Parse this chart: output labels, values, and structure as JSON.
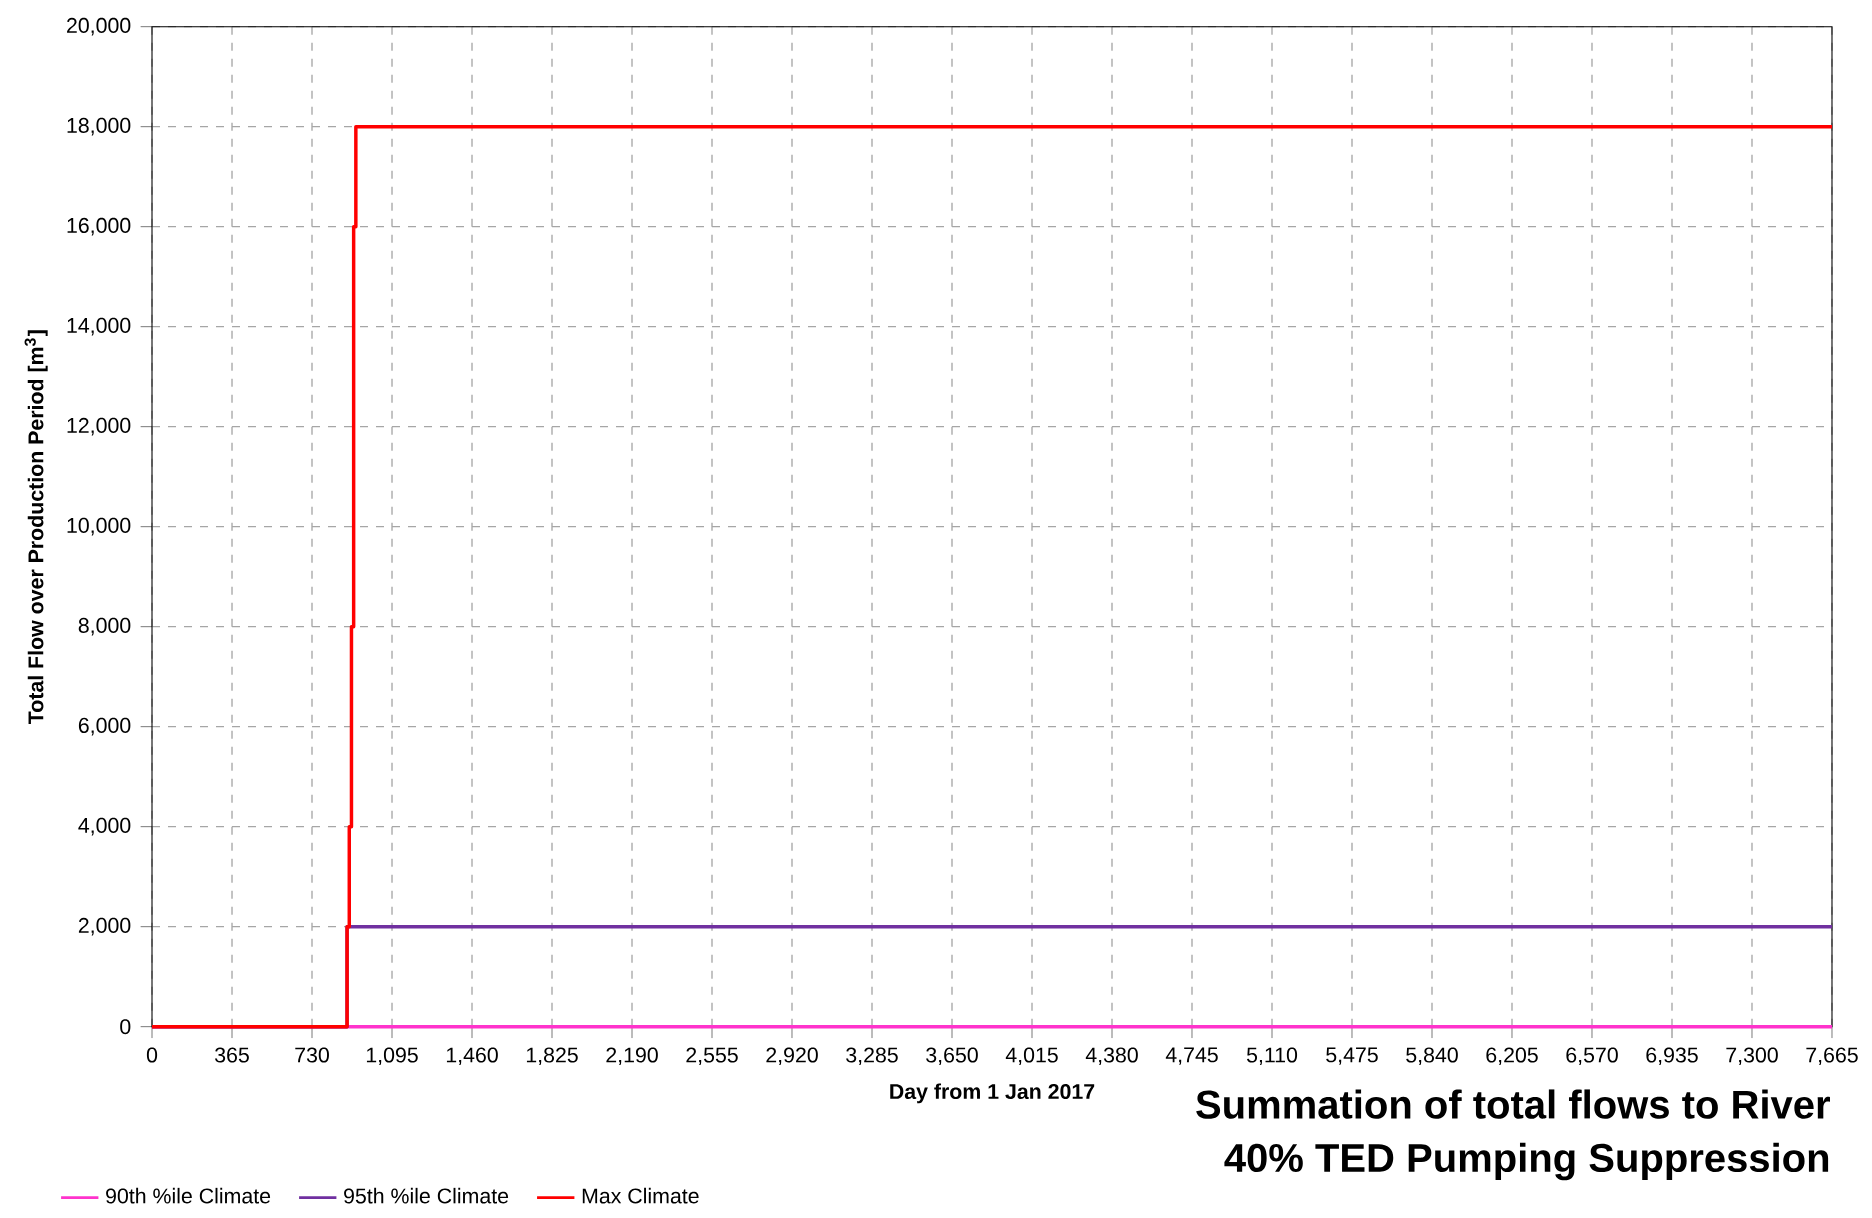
{
  "chart_data": {
    "type": "step",
    "xlabel": "Day from 1 Jan 2017",
    "ylabel": "Total Flow over Production Period [m$^{3}$]",
    "annotations": [
      "Summation of total flows to River",
      "40% TED Pumping Suppression"
    ],
    "series": [
      {
        "name": "90th %ile Climate",
        "color": "#ff33cc",
        "x": [
          0,
          7665
        ],
        "values": [
          0,
          0
        ]
      },
      {
        "name": "95th %ile Climate",
        "color": "#7030a0",
        "x": [
          0,
          890,
          7665
        ],
        "values": [
          0,
          2000,
          2000
        ]
      },
      {
        "name": "Max Climate",
        "color": "#ff0000",
        "x": [
          0,
          890,
          900,
          910,
          920,
          930,
          7665
        ],
        "values": [
          0,
          2000,
          4000,
          8000,
          16000,
          18000,
          18000
        ]
      }
    ],
    "xlim": [
      0,
      7665
    ],
    "ylim": [
      0,
      20000
    ],
    "xticks": [
      0,
      365,
      730,
      {
        "value": 1095,
        "label": "1,095"
      },
      {
        "value": 1460,
        "label": "1,460"
      },
      {
        "value": 1825,
        "label": "1,825"
      },
      {
        "value": 2190,
        "label": "2,190"
      },
      {
        "value": 2555,
        "label": "2,555"
      },
      {
        "value": 2920,
        "label": "2,920"
      },
      {
        "value": 3285,
        "label": "3,285"
      },
      {
        "value": 3650,
        "label": "3,650"
      },
      {
        "value": 4015,
        "label": "4,015"
      },
      {
        "value": 4380,
        "label": "4,380"
      },
      {
        "value": 4745,
        "label": "4,745"
      },
      {
        "value": 5110,
        "label": "5,110"
      },
      {
        "value": 5475,
        "label": "5,475"
      },
      {
        "value": 5840,
        "label": "5,840"
      },
      {
        "value": 6205,
        "label": "6,205"
      },
      {
        "value": 6570,
        "label": "6,570"
      },
      {
        "value": 6935,
        "label": "6,935"
      },
      {
        "value": 7300,
        "label": "7,300"
      },
      {
        "value": 7665,
        "label": "7,665"
      }
    ],
    "yticks": [
      0,
      {
        "value": 2000,
        "label": "2,000"
      },
      {
        "value": 4000,
        "label": "4,000"
      },
      {
        "value": 6000,
        "label": "6,000"
      },
      {
        "value": 8000,
        "label": "8,000"
      },
      {
        "value": 10000,
        "label": "10,000"
      },
      {
        "value": 12000,
        "label": "12,000"
      },
      {
        "value": 14000,
        "label": "14,000"
      },
      {
        "value": 16000,
        "label": "16,000"
      },
      {
        "value": 18000,
        "label": "18,000"
      },
      {
        "value": 20000,
        "label": "20,000"
      }
    ],
    "grid": true,
    "legend": "bottom left"
  }
}
